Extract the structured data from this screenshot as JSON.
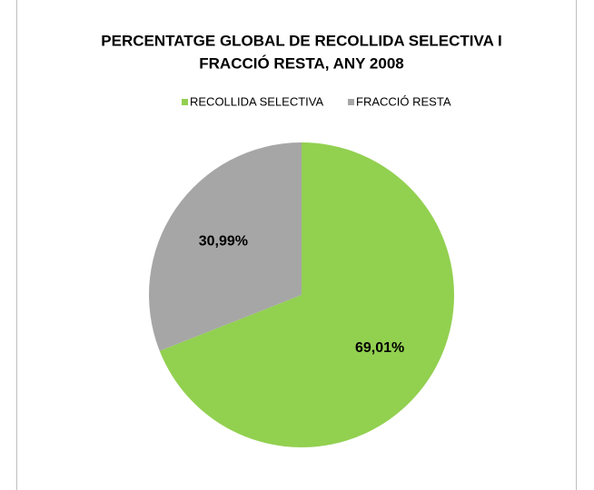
{
  "chart_data": {
    "type": "pie",
    "title": [
      "PERCENTATGE GLOBAL  DE RECOLLIDA SELECTIVA I",
      "FRACCIÓ RESTA, ANY 2008"
    ],
    "categories": [
      "RECOLLIDA SELECTIVA",
      "FRACCIÓ RESTA"
    ],
    "values": [
      69.01,
      30.99
    ],
    "value_labels": [
      "69,01%",
      "30,99%"
    ],
    "colors": [
      "#92d050",
      "#a6a6a6"
    ],
    "legend": "top"
  }
}
